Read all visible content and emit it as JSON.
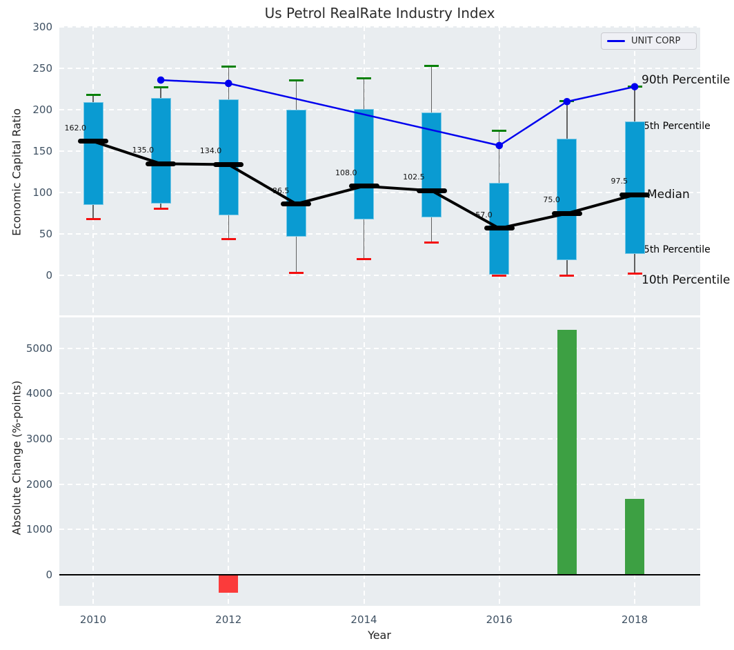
{
  "title": "Us Petrol RealRate Industry Index",
  "top_chart": {
    "ylabel": "Economic Capital Ratio",
    "legend_label": "UNIT CORP",
    "annotations": {
      "p90": "90th Percentile",
      "p75": "75th Percentile",
      "median": "Median",
      "p25": "25th Percentile",
      "p10": "10th Percentile"
    }
  },
  "bottom_chart": {
    "ylabel": "Absolute Change (%-points)",
    "xlabel": "Year"
  },
  "colors": {
    "box": "#0a9bd2",
    "whisker": "#606060",
    "p90_cap": "#068006",
    "p10_cap": "#f40e0e",
    "median_line": "#000000",
    "company_line": "#0000ee",
    "bar_positive": "#3da043",
    "bar_negative": "#fb3b3b",
    "cyan_label": "#17a0d5",
    "plot_bg": "#e9edf0",
    "grid": "#ffffff",
    "tick": "#3e5062"
  },
  "chart_data": [
    {
      "type": "box-percentile+line",
      "title": "Us Petrol RealRate Industry Index",
      "ylabel": "Economic Capital Ratio",
      "ylim": [
        -48,
        301
      ],
      "yticks": [
        0,
        50,
        100,
        150,
        200,
        250,
        300
      ],
      "xgrid_years": [
        2010,
        2012,
        2014,
        2016,
        2018
      ],
      "categories": [
        2010,
        2011,
        2012,
        2013,
        2014,
        2015,
        2016,
        2017,
        2018
      ],
      "series": [
        {
          "name": "90th Percentile",
          "values": [
            218,
            227,
            252,
            236,
            238,
            253,
            175,
            211,
            228
          ]
        },
        {
          "name": "75th Percentile",
          "values": [
            209,
            214,
            213,
            200,
            201,
            197,
            112,
            165,
            186
          ]
        },
        {
          "name": "Median",
          "values": [
            162,
            135,
            134,
            86.5,
            108,
            102.5,
            57,
            75,
            97.5
          ]
        },
        {
          "name": "25th Percentile",
          "values": [
            85,
            87,
            73,
            47,
            68,
            70,
            1,
            19,
            26
          ]
        },
        {
          "name": "10th Percentile",
          "values": [
            68,
            81,
            44,
            3,
            20,
            40,
            0,
            0,
            2
          ]
        }
      ],
      "median_labels": [
        "162.0",
        "135.0",
        "134.0",
        "86.5",
        "108.0",
        "102.5",
        "57.0",
        "75.0",
        "97.5"
      ],
      "company_line": {
        "name": "UNIT CORP",
        "x": [
          2011,
          2012,
          2016,
          2017,
          2018
        ],
        "values": [
          236,
          232,
          157,
          210,
          228
        ]
      },
      "legend_position": "upper right",
      "grid": "white dashed"
    },
    {
      "type": "bar",
      "ylabel": "Absolute Change (%-points)",
      "xlabel": "Year",
      "ylim": [
        -685,
        5680
      ],
      "yticks": [
        0,
        1000,
        2000,
        3000,
        4000,
        5000
      ],
      "xticks": [
        2010,
        2012,
        2014,
        2016,
        2018
      ],
      "bars": [
        {
          "x": 2012,
          "value": -400,
          "sign": "negative"
        },
        {
          "x": 2017,
          "value": 5400,
          "sign": "positive"
        },
        {
          "x": 2018,
          "value": 1680,
          "sign": "positive"
        }
      ],
      "grid": "white dashed"
    }
  ]
}
